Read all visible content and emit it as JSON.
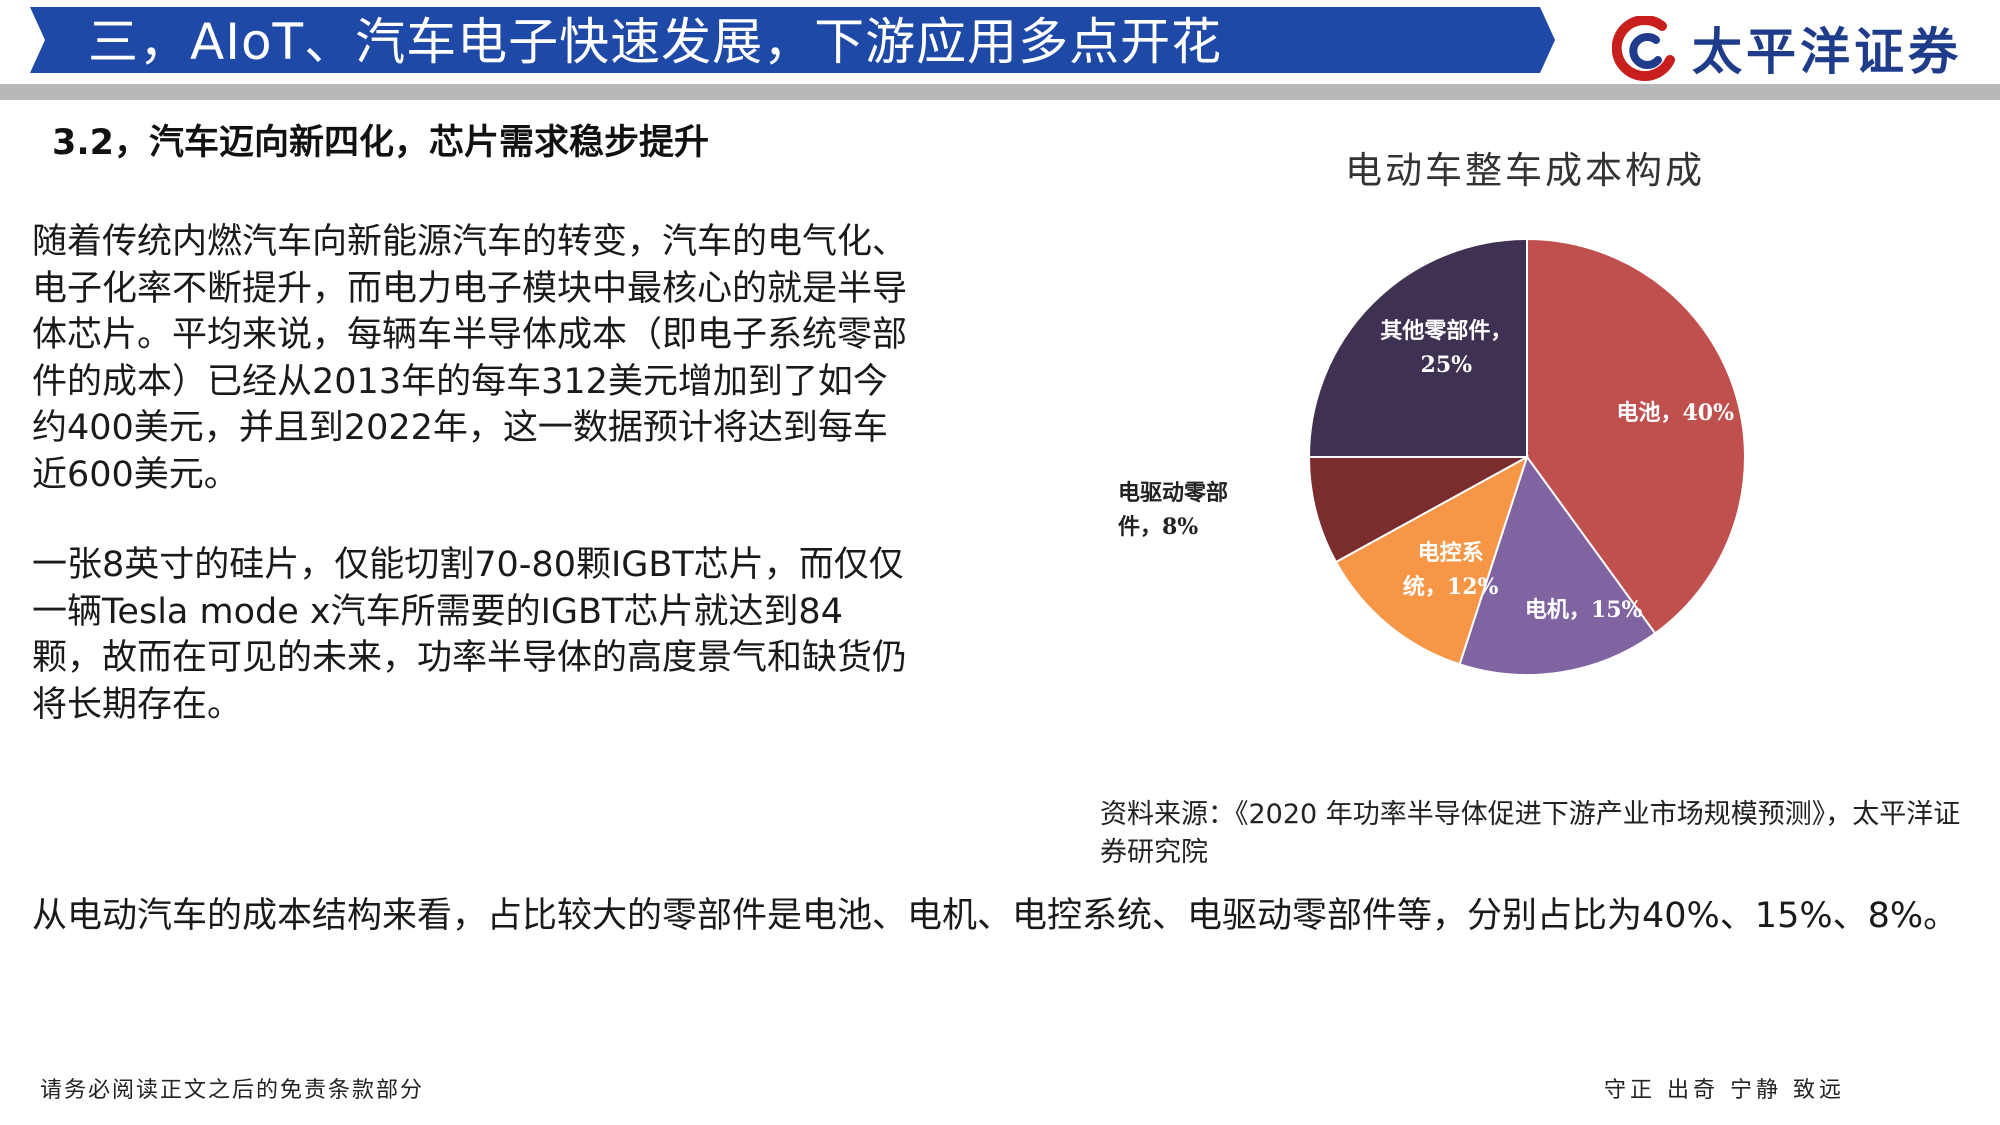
{
  "header": {
    "title": "三，AIoT、汽车电子快速发展，下游应用多点开花",
    "logo_text": "太平洋证券",
    "banner_color": "#1f49a7",
    "accent_color": "#1f3c8a",
    "logo_mark_color": "#c81e1e"
  },
  "section": {
    "title": "3.2，汽车迈向新四化，芯片需求稳步提升"
  },
  "body": {
    "paragraph_1": "随着传统内燃汽车向新能源汽车的转变，汽车的电气化、电子化率不断提升，而电力电子模块中最核心的就是半导体芯片。平均来说，每辆车半导体成本（即电子系统零部件的成本）已经从2013年的每车312美元增加到了如今约400美元，并且到2022年，这一数据预计将达到每车近600美元。",
    "paragraph_2": "一张8英寸的硅片，仅能切割70-80颗IGBT芯片，而仅仅一辆Tesla mode x汽车所需要的IGBT芯片就达到84颗，故而在可见的未来，功率半导体的高度景气和缺货仍将长期存在。",
    "summary": "从电动汽车的成本结构来看，占比较大的零部件是电池、电机、电控系统、电驱动零部件等，分别占比为40%、15%、8%。"
  },
  "source": {
    "text": "资料来源：《2020 年功率半导体促进下游产业市场规模预测》，太平洋证券研究院"
  },
  "chart_data": {
    "type": "pie",
    "title": "电动车整车成本构成",
    "unit": "%",
    "start_angle_deg": 0,
    "direction": "clockwise",
    "slices": [
      {
        "label": "电池，40%",
        "value": 40,
        "color": "#c0504d"
      },
      {
        "label": "电机，15%",
        "value": 15,
        "color": "#8064a2"
      },
      {
        "label": "电控系统，12%",
        "value": 12,
        "color": "#f79646"
      },
      {
        "label": "电驱动零部件，8%",
        "value": 8,
        "color": "#7b2c2c"
      },
      {
        "label": "其他零部件，25%",
        "value": 25,
        "color": "#3f3151"
      }
    ]
  },
  "footer": {
    "disclaimer": "请务必阅读正文之后的免责条款部分",
    "motto": "守正 出奇 宁静 致远"
  }
}
